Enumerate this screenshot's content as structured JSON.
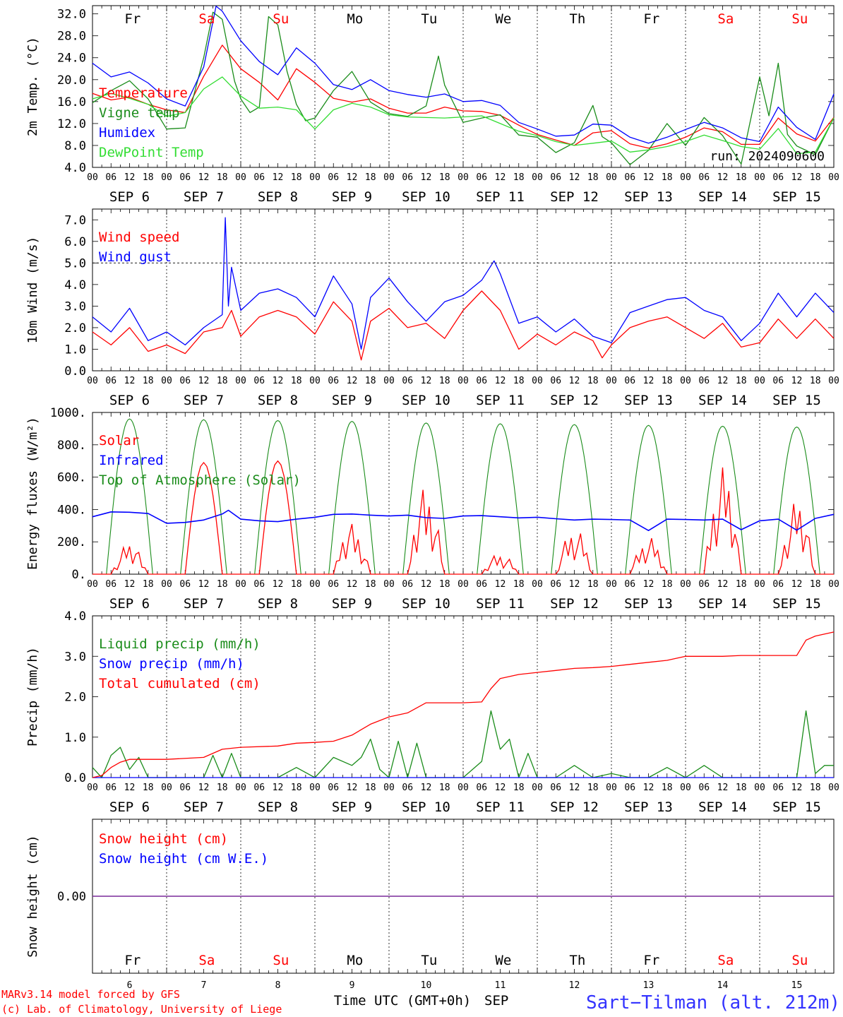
{
  "colors": {
    "red": "#ff0000",
    "dkgreen": "#1a8c1a",
    "blue": "#0000ff",
    "ltgreen": "#33dd33",
    "purple": "#7a2a9a",
    "station": "#3333ff"
  },
  "days": [
    "Fr",
    "Sa",
    "Su",
    "Mo",
    "Tu",
    "We",
    "Th",
    "Fr",
    "Sa",
    "Su"
  ],
  "day_colors": [
    "#000000",
    "#ff0000",
    "#ff0000",
    "#000000",
    "#000000",
    "#000000",
    "#000000",
    "#000000",
    "#ff0000",
    "#ff0000"
  ],
  "date_labels": [
    "SEP  6",
    "SEP  7",
    "SEP  8",
    "SEP  9",
    "SEP 10",
    "SEP 11",
    "SEP 12",
    "SEP 13",
    "SEP 14",
    "SEP 15"
  ],
  "hour_ticks": [
    "00",
    "06",
    "12",
    "18"
  ],
  "hour_end": "00",
  "bottom_day_numbers": [
    "6",
    "7",
    "8",
    "9",
    "10",
    "11",
    "12",
    "13",
    "14",
    "15"
  ],
  "footer": {
    "credit1": "MARv3.14 model forced by GFS",
    "credit2": "(c) Lab. of Climatology, University of Liege",
    "time_label": "Time UTC (GMT+0h)",
    "month": "SEP",
    "station": "Sart−Tilman (alt. 212m)"
  },
  "chart_data": [
    {
      "type": "line",
      "ylabel": "2m Temp. (°C)",
      "ylim": [
        4,
        33.5
      ],
      "yticks": [
        "4.0",
        "8.0",
        "12.0",
        "16.0",
        "20.0",
        "24.0",
        "28.0",
        "32.0"
      ],
      "run_label": "run: 2024090600",
      "x_unit": "hours since SEP 6 00 UTC",
      "series": [
        {
          "name": "Temperature",
          "color": "#ff0000",
          "x": [
            0,
            6,
            12,
            18,
            24,
            30,
            36,
            42,
            48,
            54,
            60,
            66,
            72,
            78,
            84,
            90,
            96,
            102,
            108,
            114,
            120,
            126,
            132,
            138,
            144,
            150,
            156,
            162,
            168,
            174,
            180,
            186,
            192,
            198,
            204,
            210,
            216,
            222,
            228,
            234,
            240
          ],
          "y": [
            17.5,
            16.3,
            16.8,
            15.5,
            14.5,
            14,
            20.6,
            26.3,
            22,
            19.5,
            16.3,
            22,
            19.5,
            16.6,
            15.9,
            16.5,
            14.8,
            13.9,
            13.9,
            15,
            14.3,
            14.2,
            13.5,
            11.7,
            10,
            9,
            8,
            10.3,
            10.7,
            8.3,
            7.5,
            8.3,
            9.5,
            11.2,
            10.5,
            8.2,
            8.2,
            13,
            10.1,
            8.8,
            13.1
          ]
        },
        {
          "name": "Vigne temp",
          "color": "#1a8c1a",
          "x": [
            0,
            6,
            12,
            18,
            24,
            30,
            36,
            39,
            42,
            46,
            48,
            51,
            54,
            57,
            60,
            63,
            66,
            69,
            72,
            78,
            84,
            90,
            96,
            102,
            108,
            112,
            114,
            120,
            126,
            132,
            138,
            144,
            150,
            156,
            162,
            165,
            168,
            174,
            180,
            186,
            192,
            198,
            204,
            210,
            216,
            219,
            222,
            225,
            228,
            234,
            240
          ],
          "y": [
            15.8,
            18,
            19.8,
            16.5,
            11,
            11.2,
            24,
            32.3,
            31,
            19.7,
            16.5,
            14,
            15,
            31.5,
            30,
            21.5,
            15.5,
            12.5,
            13,
            18,
            21.5,
            15.9,
            13.8,
            13.3,
            15.2,
            24.3,
            19,
            12.2,
            13,
            13.6,
            9.9,
            9.5,
            6.7,
            8.5,
            15.3,
            9.6,
            8.5,
            4.5,
            7.1,
            12,
            8,
            13.1,
            9.8,
            4.6,
            20.5,
            13.4,
            23,
            10,
            7.9,
            6.3,
            13
          ]
        },
        {
          "name": "Humidex",
          "color": "#0000ff",
          "x": [
            0,
            6,
            12,
            18,
            24,
            30,
            36,
            40,
            42,
            48,
            54,
            60,
            66,
            72,
            78,
            84,
            90,
            96,
            102,
            108,
            114,
            120,
            126,
            132,
            138,
            144,
            150,
            156,
            162,
            168,
            174,
            180,
            186,
            192,
            198,
            204,
            210,
            216,
            222,
            228,
            234,
            240
          ],
          "y": [
            23,
            20.5,
            21.4,
            19.4,
            16.5,
            15.2,
            22.3,
            33.4,
            32.5,
            27.1,
            23.3,
            20.9,
            25.8,
            23,
            19.1,
            18.2,
            20,
            18,
            17.3,
            16.8,
            17.4,
            16,
            16.2,
            15.3,
            12.2,
            11,
            9.7,
            9.9,
            11.9,
            11.7,
            9.5,
            8.4,
            9.5,
            10.9,
            12.2,
            11.2,
            9.4,
            8.7,
            15,
            11.3,
            9.1,
            17.4
          ]
        },
        {
          "name": "DewPoint Temp",
          "color": "#33dd33",
          "x": [
            0,
            6,
            12,
            18,
            24,
            30,
            36,
            42,
            48,
            54,
            60,
            66,
            72,
            78,
            84,
            90,
            96,
            102,
            108,
            114,
            120,
            126,
            132,
            138,
            144,
            150,
            156,
            162,
            168,
            174,
            180,
            186,
            192,
            198,
            204,
            210,
            216,
            222,
            228,
            234,
            240
          ],
          "y": [
            16.5,
            17.5,
            16.6,
            15.5,
            13.3,
            14,
            18.3,
            20.5,
            17,
            14.8,
            15,
            14.5,
            11,
            14.5,
            15.7,
            15,
            13.6,
            13.2,
            13.1,
            13,
            13.2,
            13.4,
            12,
            10.6,
            9.8,
            8.7,
            8,
            8.4,
            8.8,
            6.8,
            7.2,
            7.8,
            8.7,
            9.9,
            8.9,
            7.8,
            7.3,
            11.1,
            6.5,
            6.8,
            13
          ]
        }
      ]
    },
    {
      "type": "line",
      "ylabel": "10m Wind (m/s)",
      "ylim": [
        0,
        7.5
      ],
      "yticks": [
        "0.0",
        "1.0",
        "2.0",
        "3.0",
        "4.0",
        "5.0",
        "6.0",
        "7.0"
      ],
      "reference_line": 5.0,
      "x_unit": "hours since SEP 6 00 UTC",
      "series": [
        {
          "name": "Wind speed",
          "color": "#ff0000",
          "x": [
            0,
            6,
            12,
            18,
            24,
            30,
            36,
            42,
            45,
            48,
            54,
            60,
            66,
            72,
            78,
            84,
            87,
            90,
            96,
            102,
            108,
            114,
            120,
            126,
            132,
            138,
            144,
            150,
            156,
            162,
            165,
            168,
            174,
            180,
            186,
            192,
            198,
            204,
            210,
            216,
            222,
            228,
            234,
            240
          ],
          "y": [
            1.8,
            1.2,
            2,
            0.9,
            1.2,
            0.8,
            1.8,
            2,
            2.8,
            1.6,
            2.5,
            2.8,
            2.5,
            1.7,
            3.2,
            2.3,
            0.5,
            2.3,
            2.9,
            2,
            2.2,
            1.5,
            2.8,
            3.7,
            2.8,
            1,
            1.7,
            1.2,
            1.8,
            1.4,
            0.6,
            1.2,
            2,
            2.3,
            2.5,
            2,
            1.5,
            2.2,
            1.1,
            1.3,
            2.4,
            1.5,
            2.4,
            1.5
          ]
        },
        {
          "name": "Wind gust",
          "color": "#0000ff",
          "x": [
            0,
            6,
            12,
            18,
            24,
            30,
            36,
            42,
            43,
            44,
            45,
            48,
            54,
            60,
            66,
            72,
            78,
            84,
            87,
            90,
            96,
            102,
            108,
            114,
            120,
            126,
            130,
            132,
            138,
            144,
            150,
            156,
            162,
            168,
            174,
            180,
            186,
            192,
            198,
            204,
            210,
            216,
            222,
            228,
            234,
            240
          ],
          "y": [
            2.5,
            1.8,
            2.9,
            1.4,
            1.8,
            1.2,
            2,
            2.6,
            7.1,
            3,
            4.8,
            2.8,
            3.6,
            3.8,
            3.4,
            2.5,
            4.4,
            3.1,
            1,
            3.4,
            4.3,
            3.2,
            2.3,
            3.2,
            3.5,
            4.2,
            5.1,
            4.5,
            2.2,
            2.5,
            1.8,
            2.4,
            1.6,
            1.3,
            2.7,
            3,
            3.3,
            3.4,
            2.8,
            2.5,
            1.4,
            2.2,
            3.6,
            2.5,
            3.6,
            2.7
          ]
        }
      ]
    },
    {
      "type": "line",
      "ylabel": "Energy fluxes (W/m²)",
      "ylim": [
        0,
        1000
      ],
      "yticks": [
        "0.",
        "200.",
        "400.",
        "600.",
        "800.",
        "1000."
      ],
      "x_unit": "hours since SEP 6 00 UTC",
      "series": [
        {
          "name": "Solar",
          "color": "#ff0000",
          "daily_peaks": [
            190,
            690,
            700,
            310,
            540,
            130,
            290,
            230,
            660,
            450
          ]
        },
        {
          "name": "Infrared",
          "color": "#0000ff",
          "x": [
            0,
            6,
            12,
            18,
            24,
            30,
            36,
            42,
            44,
            48,
            54,
            60,
            66,
            72,
            78,
            84,
            90,
            96,
            102,
            108,
            114,
            120,
            126,
            132,
            138,
            144,
            150,
            156,
            162,
            168,
            174,
            180,
            186,
            192,
            198,
            204,
            210,
            216,
            222,
            228,
            234,
            240
          ],
          "y": [
            355,
            385,
            383,
            375,
            315,
            320,
            335,
            372,
            395,
            340,
            330,
            325,
            340,
            352,
            370,
            372,
            365,
            360,
            365,
            350,
            345,
            360,
            362,
            355,
            348,
            352,
            343,
            335,
            340,
            338,
            335,
            270,
            340,
            338,
            335,
            340,
            275,
            330,
            340,
            272,
            345,
            370
          ]
        },
        {
          "name": "Top of Atmosphere (Solar)",
          "color": "#1a8c1a",
          "daily_peaks": [
            960,
            955,
            950,
            945,
            935,
            930,
            925,
            920,
            915,
            910
          ]
        }
      ]
    },
    {
      "type": "line",
      "ylabel": "Precip (mm/h)",
      "ylim": [
        0,
        4.0
      ],
      "yticks": [
        "0.0",
        "1.0",
        "2.0",
        "3.0",
        "4.0"
      ],
      "x_unit": "hours since SEP 6 00 UTC",
      "series": [
        {
          "name": "Liquid precip (mm/h)",
          "color": "#1a8c1a",
          "x": [
            0,
            3,
            6,
            9,
            12,
            15,
            18,
            36,
            39,
            42,
            45,
            48,
            60,
            66,
            72,
            78,
            84,
            87,
            90,
            93,
            96,
            99,
            102,
            105,
            108,
            111,
            114,
            120,
            126,
            129,
            132,
            135,
            138,
            141,
            144,
            150,
            156,
            162,
            168,
            174,
            180,
            186,
            192,
            198,
            204,
            210,
            216,
            222,
            228,
            231,
            234,
            237,
            240
          ],
          "y": [
            0.25,
            0,
            0.55,
            0.75,
            0.2,
            0.5,
            0,
            0,
            0.55,
            0,
            0.6,
            0,
            0,
            0.25,
            0,
            0.5,
            0.3,
            0.5,
            0.95,
            0.2,
            0,
            0.9,
            0,
            0.85,
            0,
            0,
            0,
            0,
            0.4,
            1.65,
            0.7,
            0.95,
            0,
            0.6,
            0,
            0,
            0.3,
            0,
            0.1,
            0,
            0,
            0.25,
            0,
            0.3,
            0,
            0,
            0,
            0,
            0,
            1.65,
            0.1,
            0.3,
            0.3
          ]
        },
        {
          "name": "Snow precip (mm/h)",
          "color": "#0000ff",
          "x": [
            0,
            240
          ],
          "y": [
            0,
            0
          ]
        },
        {
          "name": "Total cumulated (cm)",
          "color": "#ff0000",
          "x": [
            0,
            3,
            6,
            9,
            12,
            18,
            24,
            36,
            42,
            48,
            60,
            66,
            72,
            78,
            84,
            90,
            96,
            102,
            108,
            114,
            120,
            126,
            129,
            132,
            138,
            144,
            150,
            156,
            162,
            168,
            174,
            180,
            186,
            192,
            198,
            204,
            210,
            216,
            222,
            228,
            231,
            234,
            240
          ],
          "y": [
            0,
            0.05,
            0.25,
            0.38,
            0.45,
            0.45,
            0.45,
            0.5,
            0.7,
            0.75,
            0.78,
            0.85,
            0.87,
            0.9,
            1.05,
            1.32,
            1.5,
            1.6,
            1.85,
            1.85,
            1.85,
            1.87,
            2.2,
            2.45,
            2.55,
            2.6,
            2.65,
            2.7,
            2.72,
            2.75,
            2.8,
            2.85,
            2.9,
            3.0,
            3.0,
            3.0,
            3.02,
            3.02,
            3.02,
            3.02,
            3.4,
            3.5,
            3.6
          ]
        }
      ]
    },
    {
      "type": "line",
      "ylabel": "Snow height (cm)",
      "yticks": [
        "0.00"
      ],
      "x_unit": "hours since SEP 6 00 UTC",
      "series": [
        {
          "name": "Snow height (cm)",
          "color": "#ff0000",
          "x": [
            0,
            240
          ],
          "y": [
            0,
            0
          ]
        },
        {
          "name": "Snow height (cm W.E.)",
          "color": "#0000ff",
          "x": [
            0,
            240
          ],
          "y": [
            0,
            0
          ]
        }
      ]
    }
  ]
}
